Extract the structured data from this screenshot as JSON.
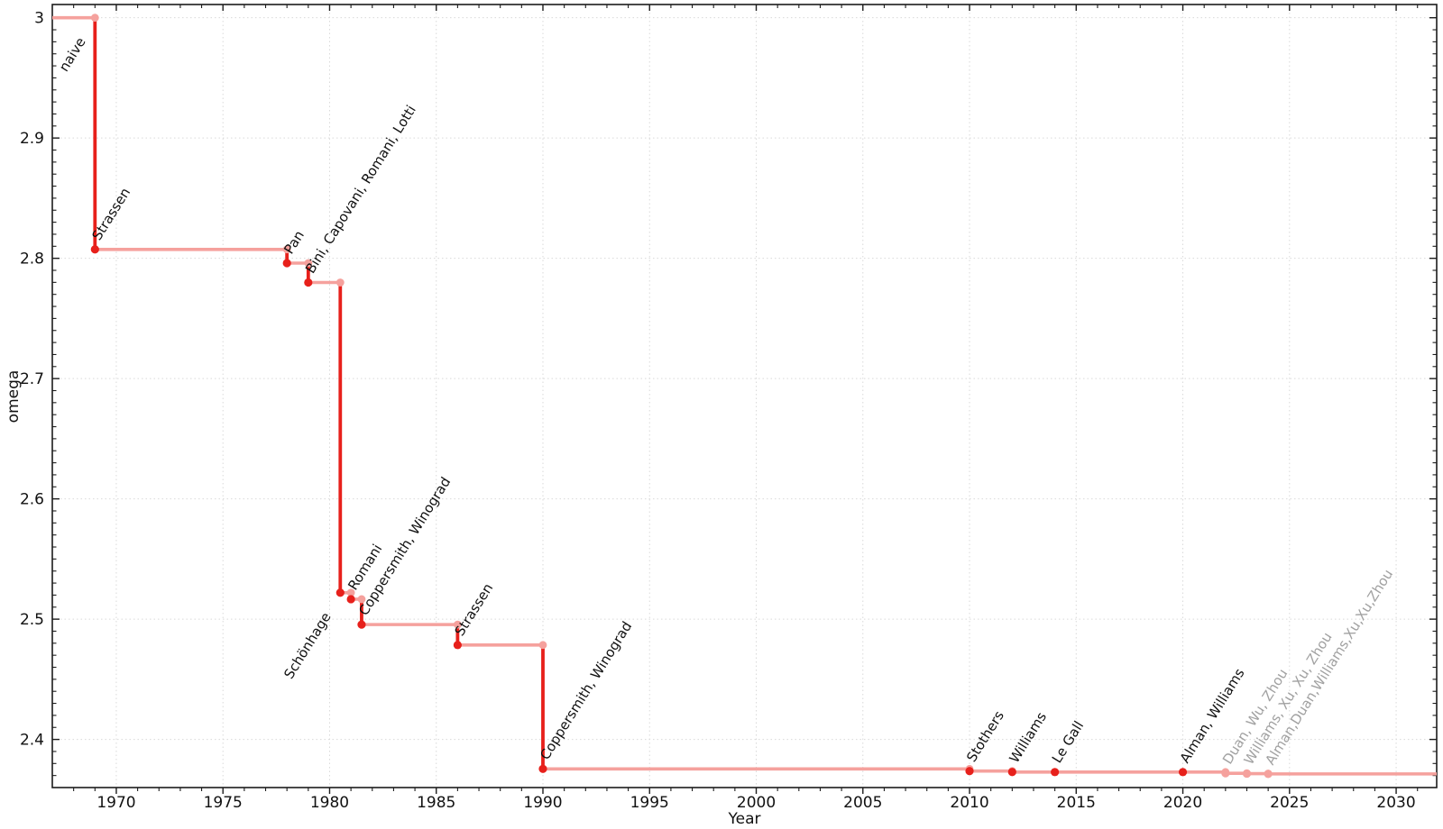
{
  "chart_data": {
    "type": "line",
    "subtype": "step-post",
    "title": "",
    "xlabel": "Year",
    "ylabel": "omega",
    "xlim": [
      1967.0,
      2031.9
    ],
    "ylim": [
      2.36,
      3.011
    ],
    "x_major_ticks": [
      1970,
      1975,
      1980,
      1985,
      1990,
      1995,
      2000,
      2005,
      2010,
      2015,
      2020,
      2025,
      2030
    ],
    "x_major_tick_labels": [
      "1970",
      "1975",
      "1980",
      "1985",
      "1990",
      "1995",
      "2000",
      "2005",
      "2010",
      "2015",
      "2020",
      "2025",
      "2030"
    ],
    "x_minor_tick_step": 1,
    "y_major_ticks": [
      3.0,
      2.9,
      2.8,
      2.7,
      2.6,
      2.5,
      2.4
    ],
    "y_major_tick_labels": [
      "3",
      "2.9",
      "2.8",
      "2.7",
      "2.6",
      "2.5",
      "2.4"
    ],
    "y_minor_tick_step": 0.01,
    "grid": "major-dotted",
    "legend": "none",
    "start": {
      "label": "naive",
      "omega": 3.0
    },
    "events": [
      {
        "author": "Strassen",
        "year": 1969,
        "omega": 2.8074
      },
      {
        "author": "Pan",
        "year": 1978,
        "omega": 2.796
      },
      {
        "author": "Bini, Capovani, Romani, Lotti",
        "year": 1979,
        "omega": 2.7799
      },
      {
        "author": "Schönhage",
        "year": 1980.5,
        "omega": 2.522,
        "label_side": "below-left"
      },
      {
        "author": "Romani",
        "year": 1981,
        "omega": 2.5166
      },
      {
        "author": "Coppersmith, Winograd",
        "year": 1981.5,
        "omega": 2.4955
      },
      {
        "author": "Strassen",
        "year": 1986,
        "omega": 2.4785
      },
      {
        "author": "Coppersmith, Winograd",
        "year": 1990,
        "omega": 2.3755
      },
      {
        "author": "Stothers",
        "year": 2010,
        "omega": 2.3737
      },
      {
        "author": "Williams",
        "year": 2012,
        "omega": 2.3729
      },
      {
        "author": "Le Gall",
        "year": 2014,
        "omega": 2.37287
      },
      {
        "author": "Alman, Williams",
        "year": 2020,
        "omega": 2.37286
      },
      {
        "author": "Duan, Wu, Zhou",
        "year": 2022,
        "omega": 2.37188,
        "provisional": true
      },
      {
        "author": "Williams, Xu, Xu, Zhou",
        "year": 2023,
        "omega": 2.37156,
        "provisional": true
      },
      {
        "author": "Alman,Duan,Williams,Xu,Xu,Zhou",
        "year": 2024,
        "omega": 2.37134,
        "provisional": true
      }
    ],
    "colors": {
      "background": "#ffffff",
      "step_drop": "#e7201b",
      "step_run": "#f5a19d",
      "point": "#e7201b",
      "point_provisional": "#f5a19d",
      "label": "#111111",
      "label_provisional": "#a1a1a1",
      "grid": "#d9d9d9",
      "axis": "#1c1c1c",
      "tick_label": "#111111"
    }
  }
}
